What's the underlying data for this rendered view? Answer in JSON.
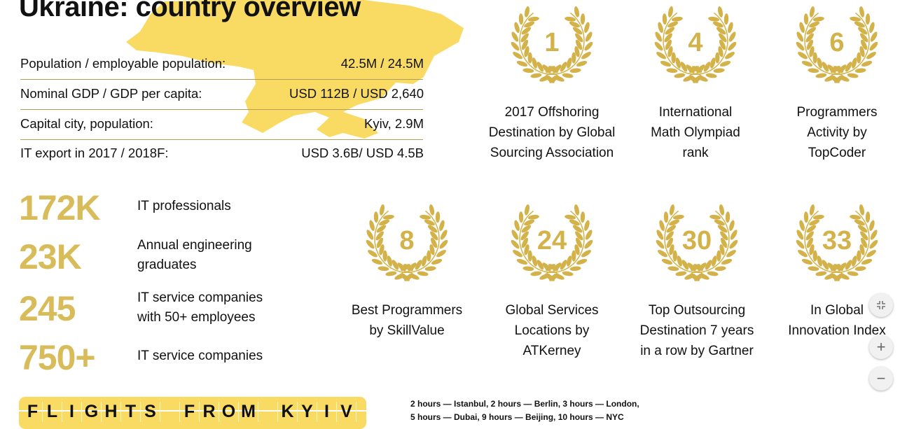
{
  "title": "Ukraine: country overview",
  "colors": {
    "map": "#F9DB64",
    "gold": "#D4B24A",
    "big_number": "#D9BC5A",
    "rule": "#B39D5C"
  },
  "facts": [
    {
      "label": "Population / employable population:",
      "value": "42.5M / 24.5M"
    },
    {
      "label": "Nominal GDP / GDP per capita:",
      "value": "USD 112B / USD 2,640"
    },
    {
      "label": "Capital city, population:",
      "value": "Kyiv, 2.9M"
    },
    {
      "label": "IT export in 2017 / 2018F:",
      "value": "USD 3.6B/ USD 4.5B"
    }
  ],
  "stats": [
    {
      "number": "172K",
      "lines": [
        "IT professionals"
      ]
    },
    {
      "number": "23K",
      "lines": [
        "Annual engineering",
        "graduates"
      ]
    },
    {
      "number": "245",
      "lines": [
        "IT service companies",
        "with 50+ employees"
      ]
    },
    {
      "number": "750+",
      "lines": [
        "IT service companies"
      ]
    }
  ],
  "awards": [
    {
      "rank": "1",
      "lines": [
        "2017 Offshoring",
        "Destination by Global",
        "Sourcing Association"
      ]
    },
    {
      "rank": "4",
      "lines": [
        "International",
        "Math Olympiad",
        "rank"
      ]
    },
    {
      "rank": "6",
      "lines": [
        "Programmers",
        "Activity by",
        "TopCoder"
      ]
    },
    {
      "rank": "8",
      "lines": [
        "Best Programmers",
        "by SkillValue"
      ]
    },
    {
      "rank": "24",
      "lines": [
        "Global Services",
        "Locations by",
        "ATKerney"
      ]
    },
    {
      "rank": "30",
      "lines": [
        "Top Outsourcing",
        "Destination 7 years",
        "in a row by Gartner"
      ]
    },
    {
      "rank": "33",
      "lines": [
        "In Global",
        "Innovation Index"
      ]
    }
  ],
  "flights": {
    "banner": "FLIGHTS FROM KYIV",
    "line1": "2 hours — Istanbul, 2 hours — Berlin, 3 hours — London,",
    "line2": "5 hours — Dubai,  9 hours — Beijing, 10 hours — NYC"
  },
  "controls": {
    "fit": "fit-screen-icon",
    "zoom_in": "+",
    "zoom_out": "−"
  }
}
